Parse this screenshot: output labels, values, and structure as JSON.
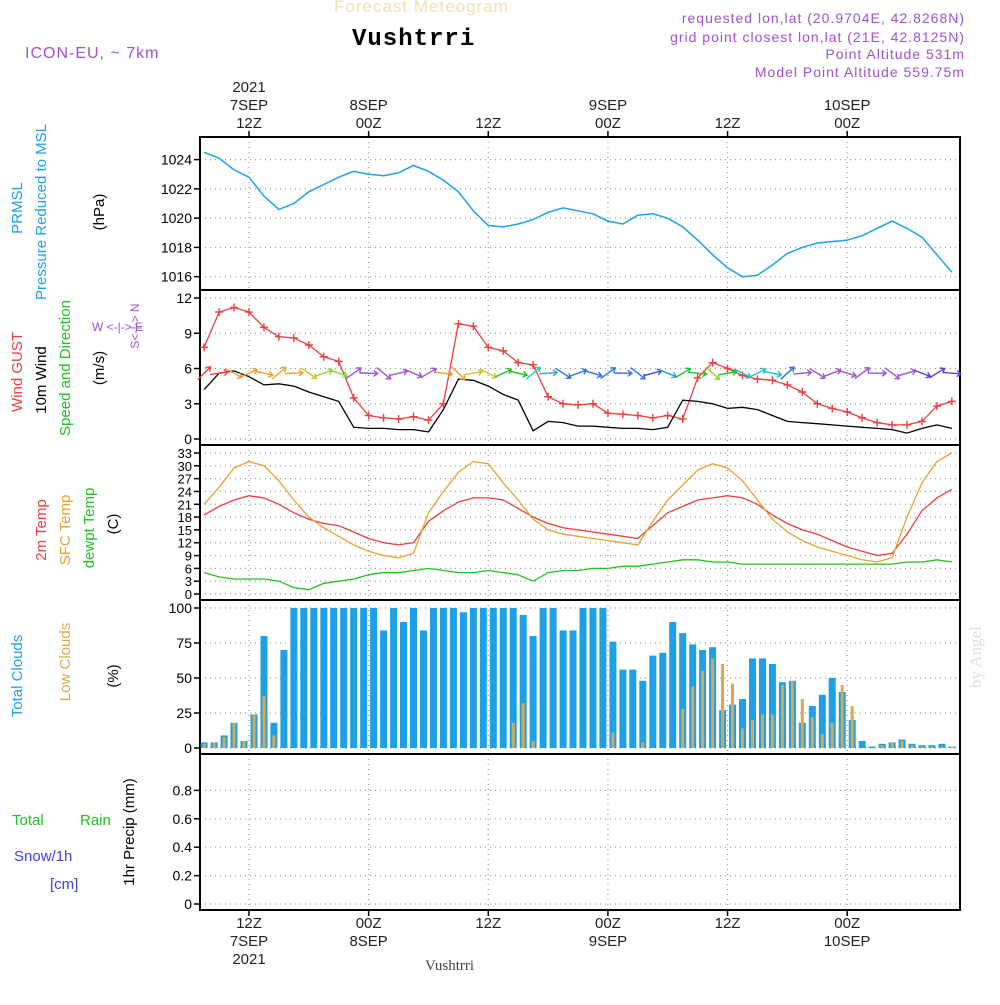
{
  "header": {
    "super_title": "Forecast Meteogram",
    "location": "Vushtrri",
    "model": "ICON-EU, ~ 7km",
    "requested": "requested lon,lat (20.9704E, 42.8268N)",
    "grid_point": "grid point closest lon,lat (21E, 42.8125N)",
    "point_altitude": "Point Altitude 531m",
    "model_altitude": "Model Point Altitude 559.75m",
    "footer_location": "Vushtrri",
    "credit": "by Angel"
  },
  "time_axis": {
    "top_labels": [
      {
        "hour": 0,
        "lines": [
          "2021",
          "7SEP",
          "12Z"
        ]
      },
      {
        "hour": 12,
        "lines": [
          "8SEP",
          "00Z"
        ]
      },
      {
        "hour": 24,
        "lines": [
          "12Z"
        ]
      },
      {
        "hour": 36,
        "lines": [
          "9SEP",
          "00Z"
        ]
      },
      {
        "hour": 48,
        "lines": [
          "12Z"
        ]
      },
      {
        "hour": 60,
        "lines": [
          "10SEP",
          "00Z"
        ]
      }
    ],
    "bottom_labels": [
      {
        "hour": 0,
        "lines": [
          "12Z",
          "7SEP",
          "2021"
        ]
      },
      {
        "hour": 12,
        "lines": [
          "00Z",
          "8SEP"
        ]
      },
      {
        "hour": 24,
        "lines": [
          "12Z"
        ]
      },
      {
        "hour": 36,
        "lines": [
          "00Z",
          "9SEP"
        ]
      },
      {
        "hour": 48,
        "lines": [
          "12Z"
        ]
      },
      {
        "hour": 60,
        "lines": [
          "00Z",
          "10SEP"
        ]
      }
    ]
  },
  "colors": {
    "pressure": "#1ea0e6",
    "gust": "#e84040",
    "wind": "#000000",
    "temp2m": "#e84040",
    "sfctemp": "#e8a030",
    "dewpt": "#22c022",
    "total_clouds": "#1ea0e6",
    "low_clouds": "#d4aa50",
    "rain": "#22c022",
    "snow": "#4040e0",
    "purple": "#a050d0"
  },
  "chart_data": [
    {
      "type": "line",
      "panel": "pressure",
      "ylabel_lines": [
        "PRMSL",
        "Pressure Reduced to MSL",
        "(hPa)"
      ],
      "ylim": [
        1015.5,
        1025
      ],
      "yticks": [
        1016,
        1018,
        1020,
        1022,
        1024
      ],
      "x_hours": [
        -4.5,
        -3,
        -1.5,
        0,
        1.5,
        3,
        4.5,
        6,
        7.5,
        9,
        10.5,
        12,
        13.5,
        15,
        16.5,
        18,
        19.5,
        21,
        22.5,
        24,
        25.5,
        27,
        28.5,
        30,
        31.5,
        33,
        34.5,
        36,
        37.5,
        39,
        40.5,
        42,
        43.5,
        45,
        46.5,
        48,
        49.5,
        51,
        52.5,
        54,
        55.5,
        57,
        58.5,
        60,
        61.5,
        63,
        64.5,
        66,
        67.5,
        69,
        70.5
      ],
      "series": [
        {
          "values": [
            1024.5,
            1024.1,
            1023.3,
            1022.8,
            1021.5,
            1020.6,
            1021.0,
            1021.8,
            1022.3,
            1022.8,
            1023.2,
            1023.0,
            1022.9,
            1023.1,
            1023.6,
            1023.2,
            1022.6,
            1021.8,
            1020.5,
            1019.5,
            1019.4,
            1019.6,
            1019.9,
            1020.4,
            1020.7,
            1020.5,
            1020.3,
            1019.8,
            1019.6,
            1020.2,
            1020.3,
            1020.0,
            1019.4,
            1018.5,
            1017.5,
            1016.6,
            1016.0,
            1016.1,
            1016.8,
            1017.6,
            1018.0,
            1018.3,
            1018.4,
            1018.5,
            1018.8,
            1019.3,
            1019.8,
            1019.3,
            1018.7,
            1017.5,
            1016.3
          ]
        }
      ]
    },
    {
      "type": "line",
      "panel": "wind",
      "ylabel_lines": [
        "Wind GUST",
        "10m Wind",
        "Speed and Direction",
        "(m/s)"
      ],
      "compass": "W <-|-> E / S <-|-> N",
      "ylim": [
        0,
        12
      ],
      "yticks": [
        0,
        3,
        6,
        9,
        12
      ],
      "x_hours": [
        -4.5,
        -3,
        -1.5,
        0,
        1.5,
        3,
        4.5,
        6,
        7.5,
        9,
        10.5,
        12,
        13.5,
        15,
        16.5,
        18,
        19.5,
        21,
        22.5,
        24,
        25.5,
        27,
        28.5,
        30,
        31.5,
        33,
        34.5,
        36,
        37.5,
        39,
        40.5,
        42,
        43.5,
        45,
        46.5,
        48,
        49.5,
        51,
        52.5,
        54,
        55.5,
        57,
        58.5,
        60,
        61.5,
        63,
        64.5,
        66,
        67.5,
        69,
        70.5
      ],
      "series": [
        {
          "name": "Wind GUST",
          "values": [
            7.8,
            10.8,
            11.2,
            10.8,
            9.5,
            8.7,
            8.6,
            8.0,
            7.0,
            6.6,
            3.5,
            2.0,
            1.8,
            1.7,
            1.9,
            1.6,
            3.0,
            9.8,
            9.6,
            7.8,
            7.5,
            6.5,
            6.3,
            3.6,
            3.0,
            2.9,
            3.0,
            2.2,
            2.1,
            2.0,
            1.8,
            2.0,
            1.7,
            5.2,
            6.5,
            6.0,
            5.4,
            5.1,
            5.0,
            4.6,
            4.0,
            3.0,
            2.6,
            2.3,
            1.8,
            1.4,
            1.2,
            1.2,
            1.5,
            2.8,
            3.2
          ]
        },
        {
          "name": "10m Wind",
          "values": [
            4.2,
            5.6,
            5.8,
            5.3,
            4.6,
            4.7,
            4.5,
            4.0,
            3.6,
            3.2,
            1.0,
            0.9,
            0.9,
            0.8,
            0.8,
            0.6,
            2.5,
            5.1,
            5.0,
            4.5,
            3.8,
            3.3,
            0.7,
            1.5,
            1.4,
            1.1,
            1.1,
            1.0,
            0.9,
            0.9,
            0.8,
            1.0,
            3.3,
            3.2,
            3.0,
            2.6,
            2.7,
            2.5,
            2.0,
            1.5,
            1.4,
            1.3,
            1.2,
            1.1,
            1.0,
            0.9,
            0.8,
            0.5,
            0.9,
            1.2,
            0.9
          ]
        }
      ],
      "arrow_colors": [
        "#e84040",
        "#e84040",
        "#e8a030",
        "#e8a030",
        "#e8a030",
        "#e8a030",
        "#e8a030",
        "#d0c030",
        "#90d030",
        "#80e030",
        "#a050d0",
        "#a050d0",
        "#a050d0",
        "#a050d0",
        "#a050d0",
        "#a050d0",
        "#e8a030",
        "#e8a030",
        "#d0c030",
        "#c0d030",
        "#22c022",
        "#22c022",
        "#20d0c0",
        "#30a0e0",
        "#3070e0",
        "#3070e0",
        "#3070e0",
        "#3070e0",
        "#3070e0",
        "#3070e0",
        "#4040e0",
        "#30a0e0",
        "#22c022",
        "#22c022",
        "#90d030",
        "#22c022",
        "#20c0d0",
        "#20c0d0",
        "#20c0d0",
        "#3070e0",
        "#a050d0",
        "#a050d0",
        "#a050d0",
        "#a050d0",
        "#a050d0",
        "#a050d0",
        "#a050d0",
        "#a050d0",
        "#6040e0",
        "#6040e0",
        "#6040e0"
      ]
    },
    {
      "type": "line",
      "panel": "temperature",
      "ylabel_lines": [
        "2m Temp",
        "SFC Temp",
        "dewpt Temp",
        "(C)"
      ],
      "ylim": [
        0,
        33
      ],
      "yticks": [
        0,
        3,
        6,
        9,
        12,
        15,
        18,
        21,
        24,
        27,
        30,
        33
      ],
      "x_hours": [
        -4.5,
        -3,
        -1.5,
        0,
        1.5,
        3,
        4.5,
        6,
        7.5,
        9,
        10.5,
        12,
        13.5,
        15,
        16.5,
        18,
        19.5,
        21,
        22.5,
        24,
        25.5,
        27,
        28.5,
        30,
        31.5,
        33,
        34.5,
        36,
        37.5,
        39,
        40.5,
        42,
        43.5,
        45,
        46.5,
        48,
        49.5,
        51,
        52.5,
        54,
        55.5,
        57,
        58.5,
        60,
        61.5,
        63,
        64.5,
        66,
        67.5,
        69,
        70.5
      ],
      "series": [
        {
          "name": "2m Temp",
          "values": [
            18.5,
            20.5,
            22.0,
            23.0,
            22.5,
            21.0,
            19.0,
            17.5,
            16.5,
            16.0,
            14.5,
            13.0,
            12.0,
            11.5,
            12.0,
            17.0,
            19.5,
            21.5,
            22.5,
            22.5,
            22.0,
            20.0,
            18.0,
            16.5,
            15.5,
            15.0,
            14.5,
            14.0,
            13.5,
            13.0,
            16.0,
            19.0,
            20.5,
            22.0,
            22.5,
            23.0,
            22.5,
            21.0,
            18.5,
            16.5,
            15.0,
            14.0,
            12.5,
            11.0,
            10.0,
            9.0,
            9.5,
            14.0,
            19.5,
            22.5,
            24.5
          ]
        },
        {
          "name": "SFC Temp",
          "values": [
            21.0,
            25.0,
            29.5,
            31.0,
            30.0,
            26.5,
            22.0,
            18.0,
            15.5,
            13.5,
            11.5,
            10.0,
            9.0,
            8.5,
            9.5,
            19.0,
            24.0,
            28.5,
            31.0,
            30.5,
            26.0,
            22.0,
            17.5,
            15.0,
            14.0,
            13.5,
            13.0,
            12.5,
            12.0,
            11.5,
            17.0,
            22.0,
            25.5,
            29.0,
            30.5,
            29.5,
            26.5,
            22.0,
            17.5,
            14.5,
            12.5,
            11.0,
            10.0,
            9.0,
            8.0,
            7.5,
            8.5,
            18.0,
            26.0,
            31.0,
            33.0
          ]
        },
        {
          "name": "dewpt Temp",
          "values": [
            5.0,
            4.0,
            3.5,
            3.5,
            3.5,
            3.0,
            1.5,
            1.0,
            2.5,
            3.0,
            3.5,
            4.5,
            5.0,
            5.0,
            5.5,
            6.0,
            5.5,
            5.0,
            5.0,
            5.5,
            5.0,
            4.5,
            3.0,
            5.0,
            5.5,
            5.5,
            6.0,
            6.0,
            6.5,
            6.5,
            7.0,
            7.5,
            8.0,
            8.0,
            7.5,
            7.5,
            7.0,
            7.0,
            7.0,
            7.0,
            7.0,
            7.0,
            7.0,
            7.0,
            7.0,
            7.0,
            7.0,
            7.5,
            7.5,
            8.0,
            7.5
          ]
        }
      ]
    },
    {
      "type": "bar",
      "panel": "clouds",
      "ylabel_lines": [
        "Total Clouds",
        "Low Clouds",
        "(%)"
      ],
      "ylim": [
        0,
        100
      ],
      "yticks": [
        0,
        25,
        50,
        75,
        100
      ],
      "x_hours": [
        -4.5,
        -3.5,
        -2.5,
        -1.5,
        -0.5,
        0.5,
        1.5,
        2.5,
        3.5,
        4.5,
        5.5,
        6.5,
        7.5,
        8.5,
        9.5,
        10.5,
        11.5,
        12.5,
        13.5,
        14.5,
        15.5,
        16.5,
        17.5,
        18.5,
        19.5,
        20.5,
        21.5,
        22.5,
        23.5,
        24.5,
        25.5,
        26.5,
        27.5,
        28.5,
        29.5,
        30.5,
        31.5,
        32.5,
        33.5,
        34.5,
        35.5,
        36.5,
        37.5,
        38.5,
        39.5,
        40.5,
        41.5,
        42.5,
        43.5,
        44.5,
        45.5,
        46.5,
        47.5,
        48.5,
        49.5,
        50.5,
        51.5,
        52.5,
        53.5,
        54.5,
        55.5,
        56.5,
        57.5,
        58.5,
        59.5,
        60.5,
        61.5,
        62.5,
        63.5,
        64.5,
        65.5,
        66.5,
        67.5,
        68.5,
        69.5,
        70.5
      ],
      "series": [
        {
          "name": "Total Clouds",
          "values": [
            4,
            4,
            9,
            18,
            5,
            24,
            80,
            18,
            70,
            100,
            100,
            100,
            100,
            100,
            100,
            100,
            100,
            100,
            84,
            100,
            90,
            100,
            84,
            100,
            100,
            100,
            97,
            100,
            100,
            100,
            100,
            100,
            95,
            80,
            100,
            100,
            84,
            84,
            100,
            100,
            100,
            76,
            56,
            56,
            48,
            66,
            68,
            90,
            82,
            74,
            70,
            72,
            27,
            31,
            35,
            64,
            64,
            60,
            47,
            48,
            18,
            30,
            38,
            50,
            40,
            20,
            5,
            1,
            3,
            4,
            6,
            3,
            2,
            2,
            3,
            1
          ],
          "secondary_values": [
            3,
            4,
            8,
            18,
            5,
            24,
            37,
            9,
            0,
            0,
            0,
            0,
            0,
            0,
            0,
            0,
            0,
            0,
            0,
            0,
            0,
            0,
            0,
            0,
            0,
            0,
            0,
            0,
            0,
            0,
            0,
            18,
            32,
            5,
            0,
            0,
            0,
            0,
            0,
            0,
            0,
            11,
            0,
            0,
            4,
            0,
            0,
            0,
            28,
            44,
            55,
            64,
            60,
            46,
            14,
            20,
            24,
            24,
            45,
            48,
            35,
            22,
            10,
            18,
            45,
            30,
            0,
            0,
            2,
            4,
            5,
            2,
            1,
            1,
            1,
            1
          ]
        }
      ]
    },
    {
      "type": "bar",
      "panel": "precip",
      "ylabel_lines": [
        "1hr Precip (mm)"
      ],
      "left_labels": [
        "Total",
        "Rain",
        "Snow/1h",
        "[cm]"
      ],
      "ylim": [
        0,
        1.0
      ],
      "yticks": [
        0,
        0.2,
        0.4,
        0.6,
        0.8
      ],
      "ytick_labels": [
        "0",
        "0.2",
        "0.4",
        "0.6",
        "0.8"
      ],
      "series": []
    }
  ]
}
